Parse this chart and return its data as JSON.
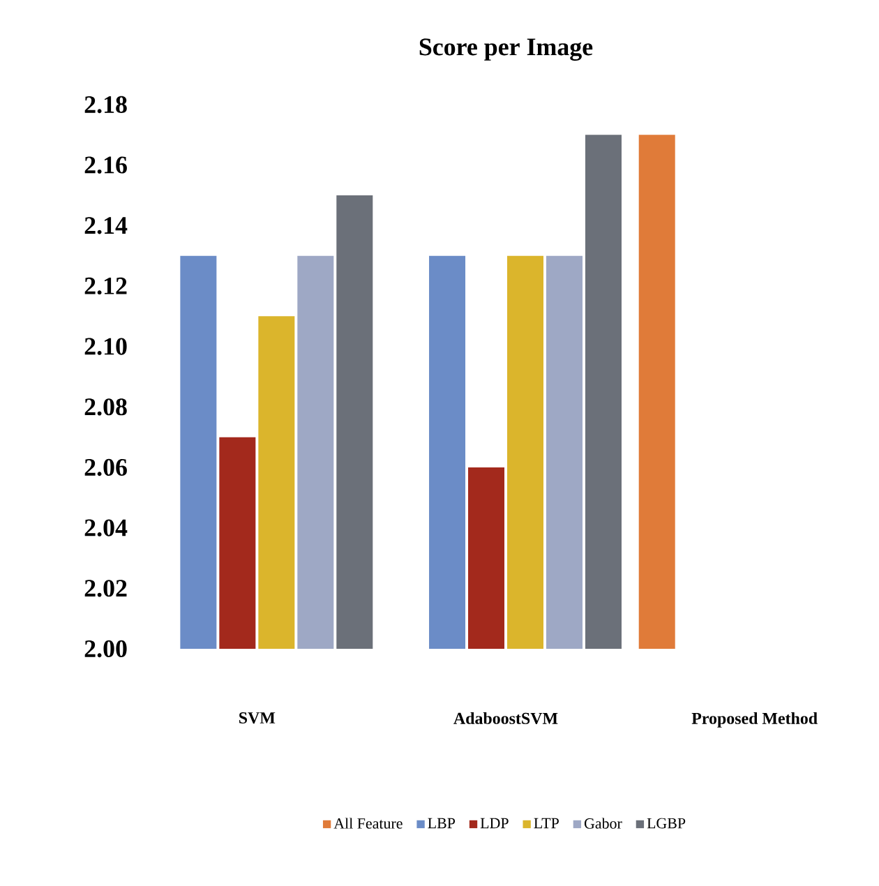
{
  "chart_data": {
    "type": "bar",
    "title": "Score per Image",
    "categories": [
      "SVM",
      "AdaboostSVM",
      "Proposed Method"
    ],
    "series": [
      {
        "name": "All Feature",
        "color": "#e07b39",
        "values": [
          null,
          null,
          2.17
        ]
      },
      {
        "name": "LBP",
        "color": "#6b8cc7",
        "values": [
          2.13,
          2.13,
          null
        ]
      },
      {
        "name": "LDP",
        "color": "#a3291c",
        "values": [
          2.07,
          2.06,
          null
        ]
      },
      {
        "name": "LTP",
        "color": "#dbb52c",
        "values": [
          2.11,
          2.13,
          null
        ]
      },
      {
        "name": "Gabor",
        "color": "#9ea8c5",
        "values": [
          2.13,
          2.13,
          null
        ]
      },
      {
        "name": "LGBP",
        "color": "#6b7079",
        "values": [
          2.15,
          2.17,
          null
        ]
      }
    ],
    "ylim": [
      2.0,
      2.18
    ],
    "yticks": [
      {
        "value": 2.0,
        "label": "2.00"
      },
      {
        "value": 2.02,
        "label": "2.02"
      },
      {
        "value": 2.04,
        "label": "2.04"
      },
      {
        "value": 2.06,
        "label": "2.06"
      },
      {
        "value": 2.08,
        "label": "2.08"
      },
      {
        "value": 2.1,
        "label": "2.10"
      },
      {
        "value": 2.12,
        "label": "2.12"
      },
      {
        "value": 2.14,
        "label": "2.14"
      },
      {
        "value": 2.16,
        "label": "2.16"
      },
      {
        "value": 2.18,
        "label": "2.18"
      }
    ],
    "legend": "bottom",
    "grid": false
  }
}
